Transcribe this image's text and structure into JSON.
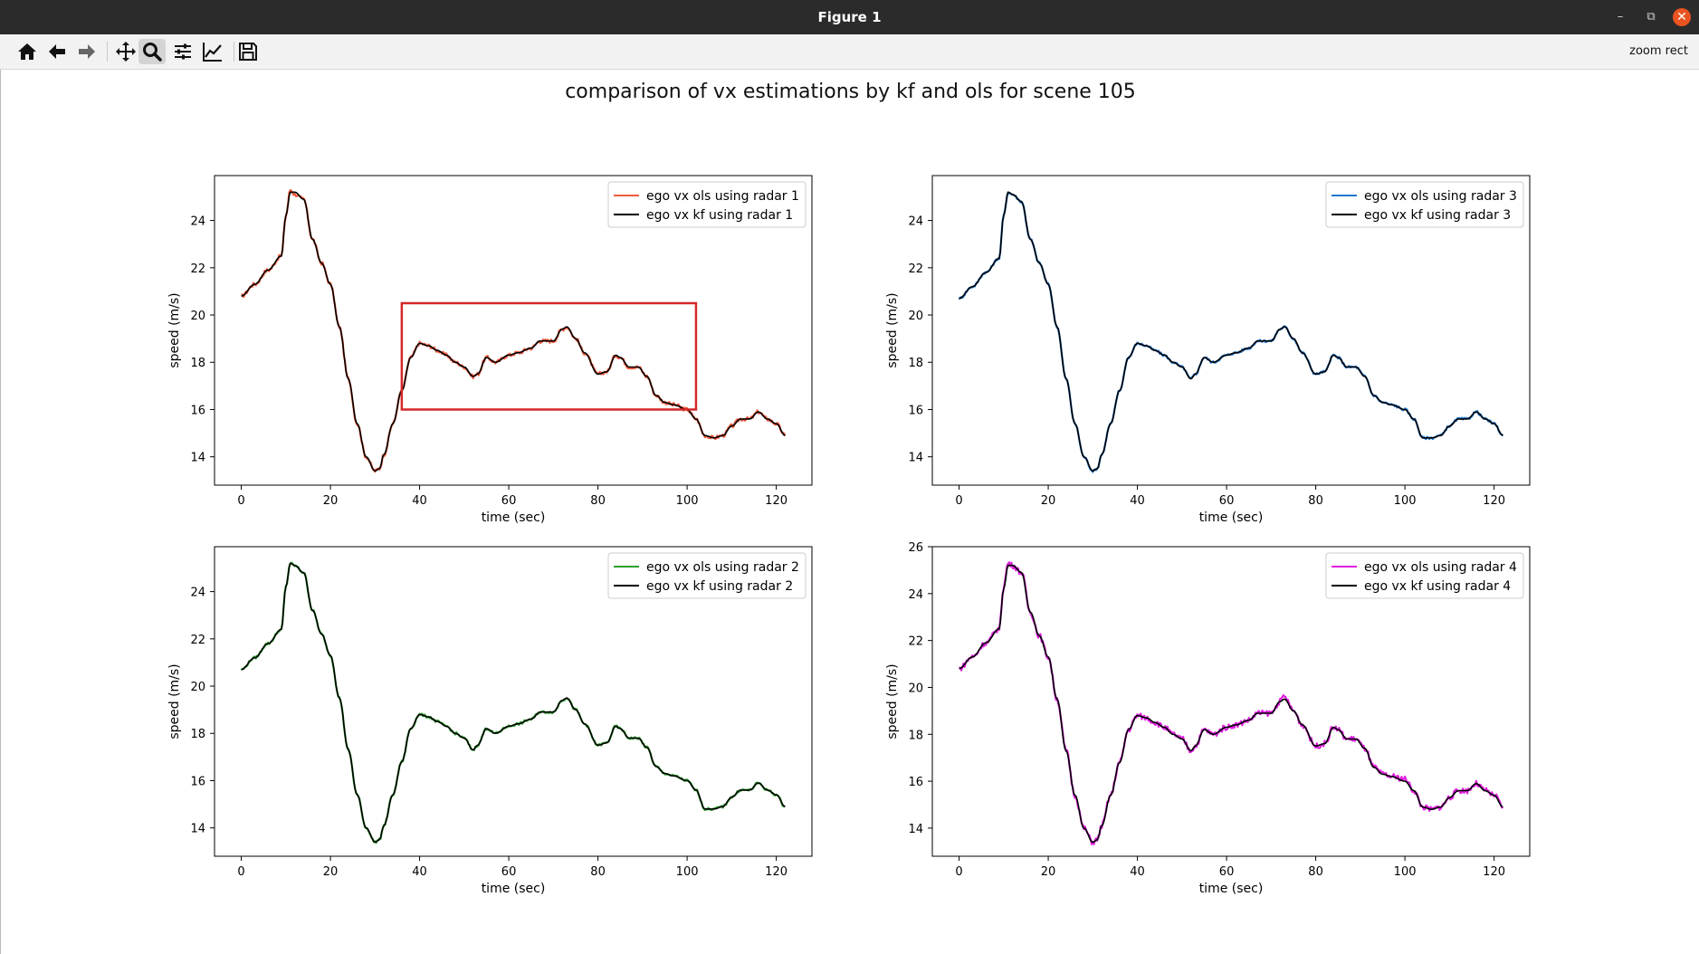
{
  "window": {
    "title": "Figure 1",
    "controls": {
      "minimize": "–",
      "maximize": "⧉",
      "close": "✕"
    }
  },
  "toolbar": {
    "buttons": [
      {
        "name": "home-icon",
        "tooltip": "Reset original view"
      },
      {
        "name": "back-arrow-icon",
        "tooltip": "Back to previous view"
      },
      {
        "name": "forward-arrow-icon",
        "tooltip": "Forward to next view"
      },
      {
        "name": "pan-icon",
        "tooltip": "Pan axes"
      },
      {
        "name": "zoom-icon",
        "tooltip": "Zoom to rectangle",
        "active": true
      },
      {
        "name": "subplots-icon",
        "tooltip": "Configure subplots"
      },
      {
        "name": "edit-axes-icon",
        "tooltip": "Edit axis, curve and image parameters"
      },
      {
        "name": "save-icon",
        "tooltip": "Save the figure"
      }
    ],
    "mode_label": "zoom rect"
  },
  "figure": {
    "title": "comparison of vx estimations by kf and ols for scene 105",
    "zoom_rectangle": {
      "subplot": 0,
      "x_range": [
        36,
        102
      ],
      "y_range": [
        16.0,
        20.5
      ],
      "color": "#d62728"
    }
  },
  "chart_data": [
    {
      "type": "line",
      "xlabel": "time (sec)",
      "ylabel": "speed (m/s)",
      "xlim": [
        -6,
        128
      ],
      "ylim": [
        12.8,
        25.9
      ],
      "xticks": [
        0,
        20,
        40,
        60,
        80,
        100,
        120
      ],
      "yticks": [
        14,
        16,
        18,
        20,
        22,
        24
      ],
      "legend_position": "top-right",
      "x": [
        0,
        3,
        6,
        9,
        10,
        11,
        12,
        14,
        16,
        18,
        20,
        22,
        24,
        26,
        28,
        30,
        31,
        32,
        34,
        36,
        38,
        40,
        42,
        44,
        46,
        48,
        50,
        52,
        53,
        55,
        57,
        60,
        62,
        65,
        67,
        70,
        72,
        73,
        75,
        77,
        80,
        82,
        84,
        85,
        87,
        89,
        91,
        93,
        95,
        97,
        100,
        102,
        104,
        106,
        108,
        110,
        112,
        114,
        116,
        118,
        120,
        122
      ],
      "series": [
        {
          "name": "ego vx ols using radar 1",
          "color": "#ee5a3c",
          "noise": 0.08,
          "values": [
            20.8,
            21.3,
            21.9,
            22.5,
            24.2,
            25.3,
            25.1,
            24.9,
            23.2,
            22.2,
            21.3,
            19.5,
            17.3,
            15.4,
            14.0,
            13.4,
            13.5,
            14.1,
            15.4,
            16.8,
            18.2,
            18.8,
            18.7,
            18.5,
            18.3,
            18.0,
            17.8,
            17.4,
            17.5,
            18.2,
            18.0,
            18.3,
            18.4,
            18.6,
            18.9,
            18.9,
            19.4,
            19.5,
            19.0,
            18.4,
            17.5,
            17.6,
            18.3,
            18.2,
            17.8,
            17.8,
            17.4,
            16.6,
            16.3,
            16.2,
            16.0,
            15.6,
            14.9,
            14.8,
            14.9,
            15.3,
            15.6,
            15.6,
            15.9,
            15.6,
            15.4,
            14.9
          ]
        },
        {
          "name": "ego vx kf using radar 1",
          "color": "#000000",
          "noise": 0,
          "values": [
            20.8,
            21.3,
            21.9,
            22.5,
            24.2,
            25.2,
            25.2,
            24.9,
            23.2,
            22.2,
            21.3,
            19.5,
            17.3,
            15.4,
            14.0,
            13.4,
            13.5,
            14.1,
            15.4,
            16.8,
            18.2,
            18.8,
            18.7,
            18.5,
            18.3,
            18.0,
            17.8,
            17.4,
            17.5,
            18.2,
            18.0,
            18.3,
            18.4,
            18.6,
            18.9,
            18.9,
            19.4,
            19.5,
            19.0,
            18.4,
            17.5,
            17.6,
            18.3,
            18.2,
            17.8,
            17.8,
            17.4,
            16.6,
            16.3,
            16.2,
            16.0,
            15.6,
            14.9,
            14.8,
            14.9,
            15.3,
            15.6,
            15.6,
            15.9,
            15.6,
            15.4,
            14.9
          ]
        }
      ]
    },
    {
      "type": "line",
      "xlabel": "time (sec)",
      "ylabel": "speed (m/s)",
      "xlim": [
        -6,
        128
      ],
      "ylim": [
        12.8,
        25.9
      ],
      "xticks": [
        0,
        20,
        40,
        60,
        80,
        100,
        120
      ],
      "yticks": [
        14,
        16,
        18,
        20,
        22,
        24
      ],
      "legend_position": "top-right",
      "x": [
        0,
        3,
        6,
        9,
        10,
        11,
        12,
        14,
        16,
        18,
        20,
        22,
        24,
        26,
        28,
        30,
        31,
        32,
        34,
        36,
        38,
        40,
        42,
        44,
        46,
        48,
        50,
        52,
        53,
        55,
        57,
        60,
        62,
        65,
        67,
        70,
        72,
        73,
        75,
        77,
        80,
        82,
        84,
        85,
        87,
        89,
        91,
        93,
        95,
        97,
        100,
        102,
        104,
        106,
        108,
        110,
        112,
        114,
        116,
        118,
        120,
        122
      ],
      "series": [
        {
          "name": "ego vx ols using radar 3",
          "color": "#1f77d0",
          "noise": 0.05,
          "values": [
            20.7,
            21.2,
            21.8,
            22.4,
            24.2,
            25.2,
            25.1,
            24.8,
            23.2,
            22.2,
            21.3,
            19.5,
            17.3,
            15.4,
            14.0,
            13.4,
            13.5,
            14.1,
            15.4,
            16.8,
            18.2,
            18.8,
            18.7,
            18.5,
            18.3,
            18.0,
            17.8,
            17.3,
            17.5,
            18.2,
            18.0,
            18.3,
            18.4,
            18.6,
            18.9,
            18.9,
            19.4,
            19.5,
            19.0,
            18.4,
            17.5,
            17.6,
            18.3,
            18.2,
            17.8,
            17.8,
            17.4,
            16.6,
            16.3,
            16.2,
            16.0,
            15.6,
            14.8,
            14.8,
            14.9,
            15.3,
            15.6,
            15.6,
            15.9,
            15.6,
            15.4,
            14.9
          ]
        },
        {
          "name": "ego vx kf using radar 3",
          "color": "#000000",
          "noise": 0,
          "values": [
            20.7,
            21.2,
            21.8,
            22.4,
            24.2,
            25.2,
            25.1,
            24.8,
            23.2,
            22.2,
            21.3,
            19.5,
            17.3,
            15.4,
            14.0,
            13.4,
            13.5,
            14.1,
            15.4,
            16.8,
            18.2,
            18.8,
            18.7,
            18.5,
            18.3,
            18.0,
            17.8,
            17.3,
            17.5,
            18.2,
            18.0,
            18.3,
            18.4,
            18.6,
            18.9,
            18.9,
            19.4,
            19.5,
            19.0,
            18.4,
            17.5,
            17.6,
            18.3,
            18.2,
            17.8,
            17.8,
            17.4,
            16.6,
            16.3,
            16.2,
            16.0,
            15.6,
            14.8,
            14.8,
            14.9,
            15.3,
            15.6,
            15.6,
            15.9,
            15.6,
            15.4,
            14.9
          ]
        }
      ]
    },
    {
      "type": "line",
      "xlabel": "time (sec)",
      "ylabel": "speed (m/s)",
      "xlim": [
        -6,
        128
      ],
      "ylim": [
        12.8,
        25.9
      ],
      "xticks": [
        0,
        20,
        40,
        60,
        80,
        100,
        120
      ],
      "yticks": [
        14,
        16,
        18,
        20,
        22,
        24
      ],
      "legend_position": "top-right",
      "x": [
        0,
        3,
        6,
        9,
        10,
        11,
        12,
        14,
        16,
        18,
        20,
        22,
        24,
        26,
        28,
        30,
        31,
        32,
        34,
        36,
        38,
        40,
        42,
        44,
        46,
        48,
        50,
        52,
        53,
        55,
        57,
        60,
        62,
        65,
        67,
        70,
        72,
        73,
        75,
        77,
        80,
        82,
        84,
        85,
        87,
        89,
        91,
        93,
        95,
        97,
        100,
        102,
        104,
        106,
        108,
        110,
        112,
        114,
        116,
        118,
        120,
        122
      ],
      "series": [
        {
          "name": "ego vx ols using radar 2",
          "color": "#2ca02c",
          "noise": 0.05,
          "values": [
            20.7,
            21.2,
            21.8,
            22.4,
            24.2,
            25.2,
            25.1,
            24.8,
            23.2,
            22.2,
            21.3,
            19.5,
            17.3,
            15.4,
            14.0,
            13.4,
            13.5,
            14.1,
            15.4,
            16.8,
            18.2,
            18.8,
            18.7,
            18.5,
            18.3,
            18.0,
            17.8,
            17.3,
            17.5,
            18.2,
            18.0,
            18.3,
            18.4,
            18.6,
            18.9,
            18.9,
            19.4,
            19.5,
            19.0,
            18.4,
            17.5,
            17.6,
            18.3,
            18.2,
            17.8,
            17.8,
            17.4,
            16.6,
            16.3,
            16.2,
            16.0,
            15.6,
            14.8,
            14.8,
            14.9,
            15.3,
            15.6,
            15.6,
            15.9,
            15.6,
            15.4,
            14.9
          ]
        },
        {
          "name": "ego vx kf using radar 2",
          "color": "#000000",
          "noise": 0,
          "values": [
            20.7,
            21.2,
            21.8,
            22.4,
            24.2,
            25.2,
            25.1,
            24.8,
            23.2,
            22.2,
            21.3,
            19.5,
            17.3,
            15.4,
            14.0,
            13.4,
            13.5,
            14.1,
            15.4,
            16.8,
            18.2,
            18.8,
            18.7,
            18.5,
            18.3,
            18.0,
            17.8,
            17.3,
            17.5,
            18.2,
            18.0,
            18.3,
            18.4,
            18.6,
            18.9,
            18.9,
            19.4,
            19.5,
            19.0,
            18.4,
            17.5,
            17.6,
            18.3,
            18.2,
            17.8,
            17.8,
            17.4,
            16.6,
            16.3,
            16.2,
            16.0,
            15.6,
            14.8,
            14.8,
            14.9,
            15.3,
            15.6,
            15.6,
            15.9,
            15.6,
            15.4,
            14.9
          ]
        }
      ]
    },
    {
      "type": "line",
      "xlabel": "time (sec)",
      "ylabel": "speed (m/s)",
      "xlim": [
        -6,
        128
      ],
      "ylim": [
        12.8,
        26.0
      ],
      "xticks": [
        0,
        20,
        40,
        60,
        80,
        100,
        120
      ],
      "yticks": [
        14,
        16,
        18,
        20,
        22,
        24,
        26
      ],
      "legend_position": "top-right",
      "x": [
        0,
        3,
        6,
        9,
        10,
        11,
        12,
        14,
        16,
        18,
        20,
        22,
        24,
        26,
        28,
        30,
        31,
        32,
        34,
        36,
        38,
        40,
        42,
        44,
        46,
        48,
        50,
        52,
        53,
        55,
        57,
        60,
        62,
        65,
        67,
        70,
        72,
        73,
        75,
        77,
        80,
        82,
        84,
        85,
        87,
        89,
        91,
        93,
        95,
        97,
        100,
        102,
        104,
        106,
        108,
        110,
        112,
        114,
        116,
        118,
        120,
        122
      ],
      "series": [
        {
          "name": "ego vx ols using radar 4",
          "color": "#e01ee0",
          "noise": 0.12,
          "values": [
            20.8,
            21.3,
            21.9,
            22.5,
            24.3,
            25.3,
            25.2,
            24.9,
            23.2,
            22.2,
            21.3,
            19.5,
            17.3,
            15.4,
            14.0,
            13.4,
            13.5,
            14.1,
            15.4,
            16.8,
            18.2,
            18.8,
            18.7,
            18.5,
            18.3,
            18.0,
            17.8,
            17.3,
            17.5,
            18.2,
            18.0,
            18.3,
            18.4,
            18.6,
            18.9,
            18.9,
            19.4,
            19.6,
            19.0,
            18.4,
            17.5,
            17.6,
            18.3,
            18.2,
            17.8,
            17.8,
            17.4,
            16.6,
            16.3,
            16.2,
            16.1,
            15.6,
            14.9,
            14.8,
            14.9,
            15.3,
            15.6,
            15.6,
            15.9,
            15.6,
            15.4,
            14.9
          ]
        },
        {
          "name": "ego vx kf using radar 4",
          "color": "#000000",
          "noise": 0,
          "values": [
            20.8,
            21.3,
            21.9,
            22.5,
            24.2,
            25.2,
            25.2,
            24.9,
            23.2,
            22.2,
            21.3,
            19.5,
            17.3,
            15.4,
            14.0,
            13.4,
            13.5,
            14.1,
            15.4,
            16.8,
            18.2,
            18.8,
            18.7,
            18.5,
            18.3,
            18.0,
            17.8,
            17.3,
            17.5,
            18.2,
            18.0,
            18.3,
            18.4,
            18.6,
            18.9,
            18.9,
            19.4,
            19.5,
            19.0,
            18.4,
            17.5,
            17.6,
            18.3,
            18.2,
            17.8,
            17.8,
            17.4,
            16.6,
            16.3,
            16.2,
            16.0,
            15.6,
            14.9,
            14.8,
            14.9,
            15.3,
            15.6,
            15.6,
            15.9,
            15.6,
            15.4,
            14.9
          ]
        }
      ]
    }
  ]
}
